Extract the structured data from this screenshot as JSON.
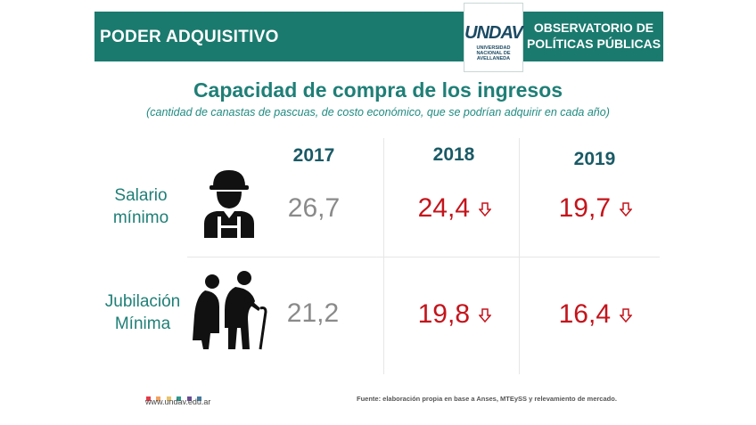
{
  "header": {
    "left_title": "PODER ADQUISITIVO",
    "right_title_line1": "OBSERVATORIO DE",
    "right_title_line2": "POLÍTICAS PÚBLICAS",
    "logo_text": "UNDAV",
    "logo_sub": [
      "UNIVERSIDAD",
      "NACIONAL DE",
      "AVELLANEDA"
    ]
  },
  "title": "Capacidad de compra de los ingresos",
  "subtitle": "(cantidad de canastas de pascuas, de costo económico, que se podrían adquirir en cada año)",
  "columns": [
    "2017",
    "2018",
    "2019"
  ],
  "rows": [
    {
      "label_line1": "Salario",
      "label_line2": "mínimo",
      "icon": "worker-icon",
      "values": [
        "26,7",
        "24,4",
        "19,7"
      ]
    },
    {
      "label_line1": "Jubilación",
      "label_line2": "Mínima",
      "icon": "elderly-couple-icon",
      "values": [
        "21,2",
        "19,8",
        "16,4"
      ]
    }
  ],
  "colors": {
    "header": "#1b7a6e",
    "title": "#1f7f77",
    "year": "#1a5a66",
    "base_value": "#8a8a8a",
    "decline_value": "#c4141b"
  },
  "footer": {
    "url": "www.undav.edu.ar",
    "source": "Fuente: elaboración propia en base a Anses, MTEySS y relevamiento de mercado.",
    "dot_colors": [
      "#e63946",
      "#f4a261",
      "#e9c46a",
      "#2a9d8f",
      "#6a4c93",
      "#457b9d"
    ]
  }
}
